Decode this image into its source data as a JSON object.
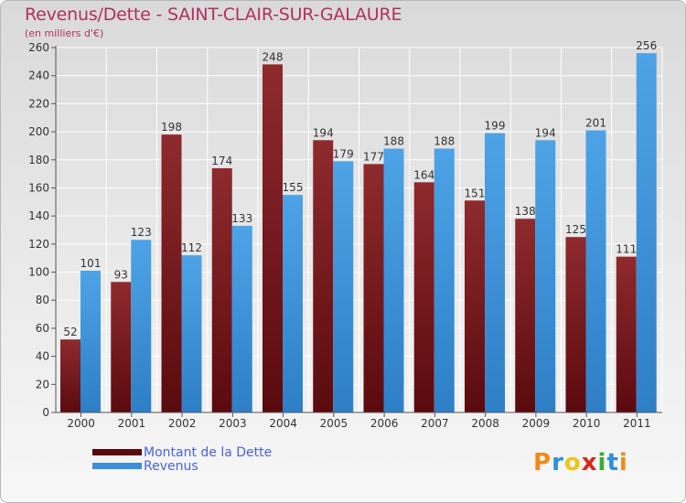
{
  "title": "Revenus/Dette - SAINT-CLAIR-SUR-GALAURE",
  "subtitle": "(en milliers d'€)",
  "logo": {
    "text": "Proxiti",
    "letters": [
      {
        "ch": "P",
        "color": "#f08a1c"
      },
      {
        "ch": "r",
        "color": "#2f8fd8"
      },
      {
        "ch": "o",
        "color": "#f0c419"
      },
      {
        "ch": "x",
        "color": "#d9261c"
      },
      {
        "ch": "i",
        "color": "#3aa935"
      },
      {
        "ch": "t",
        "color": "#2f8fd8"
      },
      {
        "ch": "i",
        "color": "#f08a1c"
      }
    ]
  },
  "colors": {
    "dette": "#7a1216",
    "revenus": "#3d8fd9",
    "axis": "#555555",
    "grid": "#ffffff"
  },
  "chart_data": {
    "type": "bar",
    "title": "Revenus/Dette - SAINT-CLAIR-SUR-GALAURE",
    "ylabel": "(en milliers d'€)",
    "xlabel": "",
    "categories": [
      "2000",
      "2001",
      "2002",
      "2003",
      "2004",
      "2005",
      "2006",
      "2007",
      "2008",
      "2009",
      "2010",
      "2011"
    ],
    "series": [
      {
        "name": "Montant de la Dette",
        "values": [
          52,
          93,
          198,
          174,
          248,
          194,
          177,
          164,
          151,
          138,
          125,
          111
        ]
      },
      {
        "name": "Revenus",
        "values": [
          101,
          123,
          112,
          133,
          155,
          179,
          188,
          188,
          199,
          194,
          201,
          256
        ]
      }
    ],
    "ylim": [
      0,
      260
    ],
    "yticks": [
      0,
      20,
      40,
      60,
      80,
      100,
      120,
      140,
      160,
      180,
      200,
      220,
      240,
      260
    ],
    "grid": true,
    "legend": "bottom-left"
  }
}
